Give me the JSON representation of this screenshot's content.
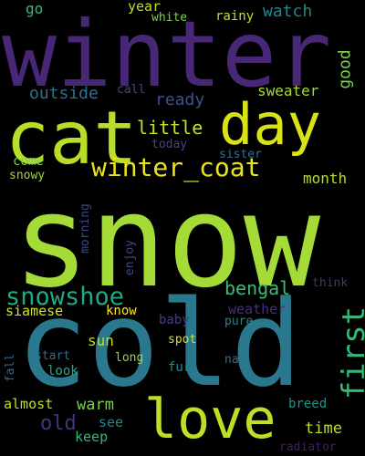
{
  "words": [
    {
      "text": "winter",
      "color": "#482777"
    },
    {
      "text": "snow",
      "color": "#a5db36"
    },
    {
      "text": "cold",
      "color": "#2a788e"
    },
    {
      "text": "cat",
      "color": "#b8de29"
    },
    {
      "text": "day",
      "color": "#d8e219"
    },
    {
      "text": "love",
      "color": "#bddf26"
    },
    {
      "text": "winter_coat",
      "color": "#eae51a"
    },
    {
      "text": "snowshoe",
      "color": "#22a884"
    },
    {
      "text": "first",
      "color": "#35b779"
    },
    {
      "text": "bengal",
      "color": "#3bbb75"
    },
    {
      "text": "little",
      "color": "#c8e020"
    },
    {
      "text": "old",
      "color": "#46337e"
    },
    {
      "text": "good",
      "color": "#7ad151"
    },
    {
      "text": "outside",
      "color": "#2c728e"
    },
    {
      "text": "ready",
      "color": "#3b528b"
    },
    {
      "text": "month",
      "color": "#b5de2b"
    },
    {
      "text": "sweater",
      "color": "#a8db34"
    },
    {
      "text": "watch",
      "color": "#25858e"
    },
    {
      "text": "year",
      "color": "#c2df23"
    },
    {
      "text": "go",
      "color": "#35b779"
    },
    {
      "text": "white",
      "color": "#7ad151"
    },
    {
      "text": "rainy",
      "color": "#c0df25"
    },
    {
      "text": "call",
      "color": "#3e4989"
    },
    {
      "text": "today",
      "color": "#3e4989"
    },
    {
      "text": "sister",
      "color": "#2d718e"
    },
    {
      "text": "come",
      "color": "#7ad151"
    },
    {
      "text": "snowy",
      "color": "#9fda3a"
    },
    {
      "text": "morning",
      "color": "#3e4989"
    },
    {
      "text": "enjoy",
      "color": "#404588"
    },
    {
      "text": "think",
      "color": "#46327e"
    },
    {
      "text": "weather",
      "color": "#472f7d"
    },
    {
      "text": "siamese",
      "color": "#d5e21a"
    },
    {
      "text": "know",
      "color": "#fde725"
    },
    {
      "text": "baby",
      "color": "#433e85"
    },
    {
      "text": "pure",
      "color": "#25858e"
    },
    {
      "text": "sun",
      "color": "#b8de29"
    },
    {
      "text": "start",
      "color": "#2e6e8e"
    },
    {
      "text": "long",
      "color": "#9dd93b"
    },
    {
      "text": "spot",
      "color": "#d2e21b"
    },
    {
      "text": "fall",
      "color": "#31668e"
    },
    {
      "text": "look",
      "color": "#25ac82"
    },
    {
      "text": "fur",
      "color": "#23898e"
    },
    {
      "text": "nap",
      "color": "#2a768e"
    },
    {
      "text": "warm",
      "color": "#7ad151"
    },
    {
      "text": "see",
      "color": "#25858e"
    },
    {
      "text": "almost",
      "color": "#bddf26"
    },
    {
      "text": "keep",
      "color": "#37b878"
    },
    {
      "text": "time",
      "color": "#c2df23"
    },
    {
      "text": "breed",
      "color": "#1f958b"
    },
    {
      "text": "radiator",
      "color": "#481a6c"
    }
  ]
}
